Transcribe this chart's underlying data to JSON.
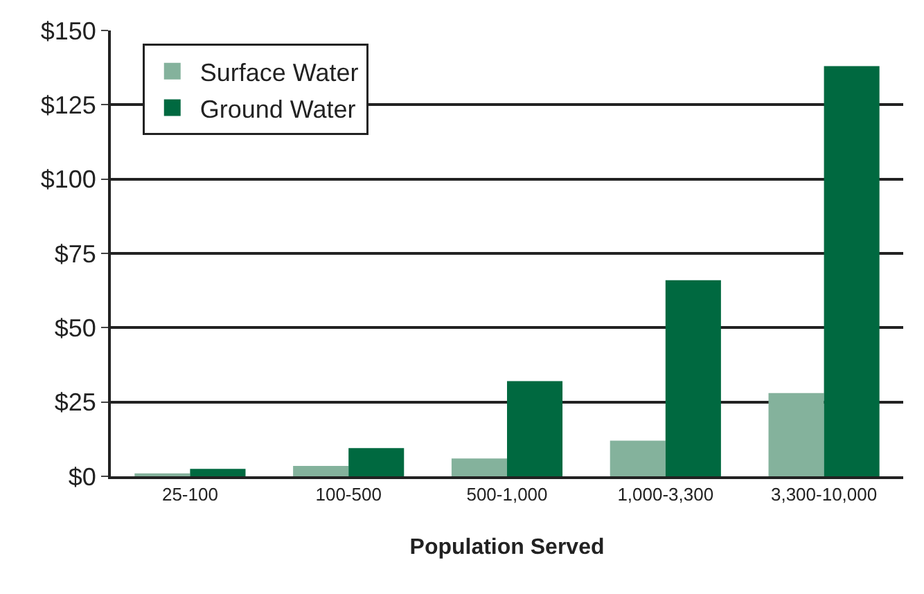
{
  "chart_data": {
    "type": "bar",
    "xlabel": "Population Served",
    "categories": [
      "25-100",
      "100-500",
      "500-1,000",
      "1,000-3,300",
      "3,300-10,000"
    ],
    "series": [
      {
        "name": "Surface Water",
        "color": "#84b29c",
        "values": [
          1,
          3.5,
          6,
          12,
          28
        ]
      },
      {
        "name": "Ground Water",
        "color": "#006940",
        "values": [
          2.5,
          9.5,
          32,
          66,
          138
        ]
      }
    ],
    "ylim": [
      0,
      150
    ],
    "yticks": [
      {
        "value": 0,
        "label": "$0"
      },
      {
        "value": 25,
        "label": "$25"
      },
      {
        "value": 50,
        "label": "$50"
      },
      {
        "value": 75,
        "label": "$75"
      },
      {
        "value": 100,
        "label": "$100"
      },
      {
        "value": 125,
        "label": "$125"
      },
      {
        "value": 150,
        "label": "$150"
      }
    ],
    "grid": "y",
    "legend": "top left"
  }
}
